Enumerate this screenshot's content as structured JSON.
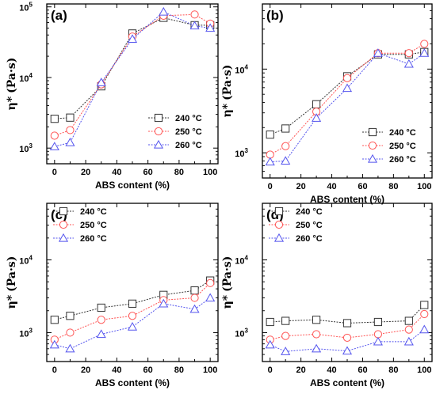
{
  "figure": {
    "xlabel": "ABS content (%)",
    "ylabel_sym": "η*",
    "ylabel_unit": "(Pa·s)",
    "x_ticks": [
      "0",
      "20",
      "40",
      "60",
      "80",
      "100"
    ],
    "y_ticks": [
      "10",
      "10",
      "10"
    ],
    "y_tick_exps": [
      "3",
      "4",
      "5"
    ],
    "series_colors": [
      "#333333",
      "#ff5555",
      "#5555ee"
    ],
    "series_markers": [
      "square",
      "circle",
      "triangle"
    ]
  },
  "chart_data": [
    {
      "type": "line",
      "panel_label": "(a)",
      "x": [
        0,
        10,
        30,
        50,
        70,
        90,
        100
      ],
      "xlim": [
        -5,
        105
      ],
      "ylim": [
        600,
        110000
      ],
      "yscale": "log",
      "legend_position": "bottom-right",
      "series": [
        {
          "name": "240 °C",
          "values": [
            2600,
            2700,
            7500,
            42000,
            70000,
            55000,
            55000
          ]
        },
        {
          "name": "250 °C",
          "values": [
            1500,
            1800,
            8000,
            38000,
            75000,
            78000,
            58000
          ]
        },
        {
          "name": "260 °C",
          "values": [
            1050,
            1200,
            8500,
            35000,
            85000,
            54000,
            50000
          ]
        }
      ]
    },
    {
      "type": "line",
      "panel_label": "(b)",
      "x": [
        0,
        10,
        30,
        50,
        70,
        90,
        100
      ],
      "xlim": [
        -5,
        105
      ],
      "ylim": [
        500,
        60000
      ],
      "yscale": "log",
      "legend_position": "bottom-right",
      "series": [
        {
          "name": "240 °C",
          "values": [
            1650,
            1950,
            3800,
            8200,
            15000,
            15000,
            16000
          ]
        },
        {
          "name": "250 °C",
          "values": [
            950,
            1200,
            3100,
            7800,
            15500,
            15500,
            20000
          ]
        },
        {
          "name": "260 °C",
          "values": [
            780,
            800,
            2600,
            5900,
            15500,
            11500,
            15500
          ]
        }
      ]
    },
    {
      "type": "line",
      "panel_label": "(c)",
      "x": [
        0,
        10,
        30,
        50,
        70,
        90,
        100
      ],
      "xlim": [
        -5,
        105
      ],
      "ylim": [
        400,
        60000
      ],
      "yscale": "log",
      "legend_position": "top-left",
      "series": [
        {
          "name": "240 °C",
          "values": [
            1500,
            1700,
            2200,
            2500,
            3300,
            3800,
            5200
          ]
        },
        {
          "name": "250 °C",
          "values": [
            800,
            1000,
            1500,
            1700,
            2800,
            3000,
            4800
          ]
        },
        {
          "name": "260 °C",
          "values": [
            680,
            600,
            950,
            1200,
            2500,
            2100,
            3000
          ]
        }
      ]
    },
    {
      "type": "line",
      "panel_label": "(d)",
      "x": [
        0,
        10,
        30,
        50,
        70,
        90,
        100
      ],
      "xlim": [
        -5,
        105
      ],
      "ylim": [
        400,
        60000
      ],
      "yscale": "log",
      "legend_position": "top-left",
      "series": [
        {
          "name": "240 °C",
          "values": [
            1400,
            1450,
            1500,
            1350,
            1400,
            1450,
            2400
          ]
        },
        {
          "name": "250 °C",
          "values": [
            800,
            900,
            950,
            850,
            950,
            1100,
            1800
          ]
        },
        {
          "name": "260 °C",
          "values": [
            680,
            550,
            600,
            560,
            750,
            750,
            1100
          ]
        }
      ]
    }
  ]
}
